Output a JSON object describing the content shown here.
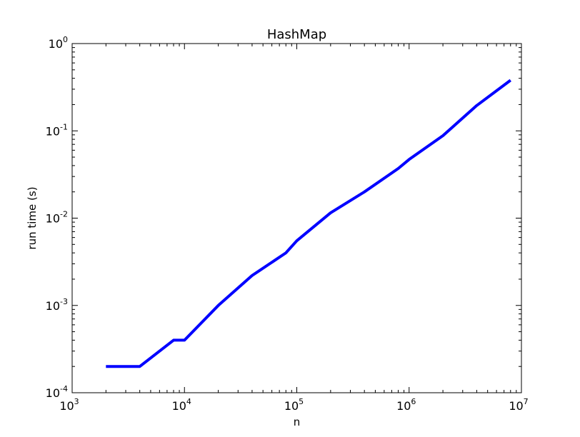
{
  "chart_data": {
    "type": "line",
    "title": "HashMap",
    "xlabel": "n",
    "ylabel": "run time (s)",
    "xscale": "log",
    "yscale": "log",
    "xlim": [
      1000,
      10000000
    ],
    "ylim": [
      0.0001,
      1
    ],
    "grid": false,
    "x_ticks": [
      {
        "value": 1000,
        "base": "10",
        "exp": "3"
      },
      {
        "value": 10000,
        "base": "10",
        "exp": "4"
      },
      {
        "value": 100000,
        "base": "10",
        "exp": "5"
      },
      {
        "value": 1000000,
        "base": "10",
        "exp": "6"
      },
      {
        "value": 10000000,
        "base": "10",
        "exp": "7"
      }
    ],
    "y_ticks": [
      {
        "value": 0.0001,
        "base": "10",
        "exp": "-4"
      },
      {
        "value": 0.001,
        "base": "10",
        "exp": "-3"
      },
      {
        "value": 0.01,
        "base": "10",
        "exp": "-2"
      },
      {
        "value": 0.1,
        "base": "10",
        "exp": "-1"
      },
      {
        "value": 1,
        "base": "10",
        "exp": "0"
      }
    ],
    "series": [
      {
        "color": "#0000ff",
        "x": [
          2000,
          4000,
          8000,
          10000,
          20000,
          40000,
          80000,
          100000,
          200000,
          400000,
          800000,
          1000000,
          2000000,
          4000000,
          8000000
        ],
        "y": [
          0.0002,
          0.0002,
          0.0004,
          0.0004,
          0.001,
          0.0022,
          0.004,
          0.0055,
          0.0115,
          0.02,
          0.037,
          0.047,
          0.088,
          0.195,
          0.38
        ]
      }
    ]
  }
}
